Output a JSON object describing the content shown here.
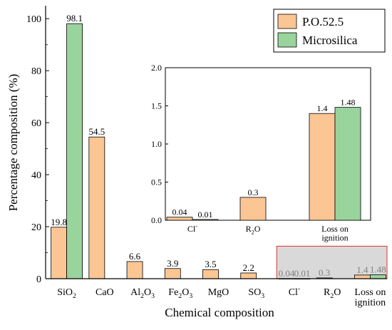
{
  "chart_data": [
    {
      "type": "bar",
      "title": "",
      "xlabel": "Chemical composition",
      "ylabel": "Percentage composition (%)",
      "ylim": [
        0,
        105
      ],
      "yticks": [
        "0",
        "20",
        "40",
        "60",
        "80",
        "100"
      ],
      "categories": [
        {
          "main": "SiO",
          "sub": "2",
          "sup": ""
        },
        {
          "main": "CaO",
          "sub": "",
          "sup": ""
        },
        {
          "main": "Al",
          "sub": "2",
          "mid": "O",
          "sub2": "3",
          "sup": ""
        },
        {
          "main": "Fe",
          "sub": "2",
          "mid": "O",
          "sub2": "3",
          "sup": ""
        },
        {
          "main": "MgO",
          "sub": "",
          "sup": ""
        },
        {
          "main": "SO",
          "sub": "3",
          "sup": ""
        },
        {
          "main": "Cl",
          "sub": "",
          "sup": "-"
        },
        {
          "main": "R",
          "sub": "2",
          "mid": "O",
          "sup": ""
        },
        {
          "main": "Loss on",
          "line2": "ignition",
          "sub": "",
          "sup": ""
        }
      ],
      "series": [
        {
          "name": "P.O.52.5",
          "color": "#fcc694",
          "values": [
            19.8,
            54.5,
            6.6,
            3.9,
            3.5,
            2.2,
            0.04,
            0.3,
            1.4
          ],
          "labels": [
            "19.8",
            "54.5",
            "6.6",
            "3.9",
            "3.5",
            "2.2",
            "0.04",
            "0.3",
            "1.4"
          ]
        },
        {
          "name": "Microsilica",
          "color": "#99d49c",
          "values": [
            98.1,
            null,
            null,
            null,
            null,
            null,
            0.01,
            null,
            1.48
          ],
          "labels": [
            "98.1",
            "",
            "",
            "",
            "",
            "",
            "0.01",
            "",
            "1.48"
          ]
        }
      ],
      "legend": "top-right",
      "highlight_region": {
        "from_category": 6,
        "to_category": 8,
        "color": "#d9d9d9",
        "border": "#e03030"
      }
    },
    {
      "type": "bar",
      "title": "inset",
      "xlabel": "",
      "ylabel": "",
      "ylim": [
        0,
        2.0
      ],
      "yticks": [
        "0.0",
        "0.5",
        "1.0",
        "1.5",
        "2.0"
      ],
      "categories": [
        {
          "main": "Cl",
          "sup": "-"
        },
        {
          "main": "R",
          "sub": "2",
          "mid": "O"
        },
        {
          "main": "Loss on",
          "line2": "ignition"
        }
      ],
      "series": [
        {
          "name": "P.O.52.5",
          "values": [
            0.04,
            0.3,
            1.4
          ],
          "labels": [
            "0.04",
            "0.3",
            "1.4"
          ]
        },
        {
          "name": "Microsilica",
          "values": [
            0.01,
            null,
            1.48
          ],
          "labels": [
            "0.01",
            "",
            "1.48"
          ]
        }
      ]
    }
  ]
}
